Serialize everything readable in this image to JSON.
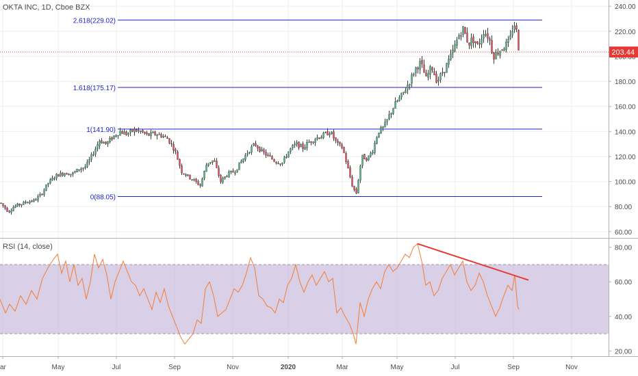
{
  "header": {
    "symbol_label": "OKTA INC, 1D, Cboe BZX"
  },
  "rsi_panel": {
    "label": "RSI (14, close)"
  },
  "colors": {
    "up": "#53b987",
    "down": "#eb4d5c",
    "fib": "#1e22cc",
    "rsi_line": "#f57c34",
    "rsi_band": "#b9a8d2",
    "trend": "#e53935",
    "price_line": "#e53935",
    "axis_text": "#4a4a4a"
  },
  "chart_data": [
    {
      "type": "candlestick",
      "title": "OKTA INC, 1D, Cboe BZX",
      "x_axis": {
        "ticks": [
          "ar",
          "May",
          "Jul",
          "Sep",
          "Nov",
          "2020",
          "Mar",
          "May",
          "Jul",
          "Sep",
          "Nov"
        ]
      },
      "y_axis": {
        "side": "right",
        "ticks": [
          "60.00",
          "80.00",
          "100.00",
          "120.00",
          "140.00",
          "160.00",
          "180.00",
          "200.00",
          "220.00",
          "240.00"
        ],
        "ylim": [
          55,
          245
        ]
      },
      "last_price": {
        "value": 203.44,
        "label": "203.44"
      },
      "fib_levels": [
        {
          "label": "2.618(229.02)",
          "value": 229.02
        },
        {
          "label": "1.618(175.17)",
          "value": 175.17
        },
        {
          "label": "1(141.90)",
          "value": 141.9
        },
        {
          "label": "0(88.05)",
          "value": 88.05
        }
      ],
      "price_path": [
        [
          0,
          83
        ],
        [
          12,
          76
        ],
        [
          20,
          80
        ],
        [
          30,
          82
        ],
        [
          40,
          84
        ],
        [
          50,
          85
        ],
        [
          60,
          90
        ],
        [
          70,
          99
        ],
        [
          82,
          105
        ],
        [
          95,
          107
        ],
        [
          105,
          106
        ],
        [
          115,
          110
        ],
        [
          125,
          112
        ],
        [
          135,
          122
        ],
        [
          145,
          133
        ],
        [
          155,
          130
        ],
        [
          165,
          136
        ],
        [
          175,
          140
        ],
        [
          185,
          138
        ],
        [
          195,
          141
        ],
        [
          205,
          140
        ],
        [
          215,
          137
        ],
        [
          225,
          138
        ],
        [
          235,
          137
        ],
        [
          245,
          134
        ],
        [
          255,
          125
        ],
        [
          265,
          108
        ],
        [
          280,
          102
        ],
        [
          292,
          97
        ],
        [
          302,
          115
        ],
        [
          312,
          117
        ],
        [
          322,
          100
        ],
        [
          332,
          106
        ],
        [
          342,
          108
        ],
        [
          352,
          116
        ],
        [
          362,
          124
        ],
        [
          372,
          130
        ],
        [
          382,
          124
        ],
        [
          392,
          120
        ],
        [
          402,
          116
        ],
        [
          412,
          115
        ],
        [
          422,
          125
        ],
        [
          432,
          130
        ],
        [
          442,
          127
        ],
        [
          452,
          132
        ],
        [
          462,
          135
        ],
        [
          472,
          137
        ],
        [
          482,
          140
        ],
        [
          492,
          130
        ],
        [
          500,
          127
        ],
        [
          508,
          110
        ],
        [
          515,
          95
        ],
        [
          520,
          91
        ],
        [
          528,
          120
        ],
        [
          536,
          118
        ],
        [
          544,
          125
        ],
        [
          552,
          140
        ],
        [
          560,
          143
        ],
        [
          570,
          155
        ],
        [
          578,
          163
        ],
        [
          588,
          170
        ],
        [
          598,
          180
        ],
        [
          606,
          190
        ],
        [
          614,
          195
        ],
        [
          622,
          182
        ],
        [
          630,
          192
        ],
        [
          638,
          180
        ],
        [
          646,
          187
        ],
        [
          654,
          195
        ],
        [
          662,
          205
        ],
        [
          670,
          217
        ],
        [
          676,
          222
        ],
        [
          684,
          210
        ],
        [
          690,
          214
        ],
        [
          698,
          208
        ],
        [
          706,
          220
        ],
        [
          714,
          215
        ],
        [
          720,
          200
        ],
        [
          728,
          204
        ],
        [
          736,
          208
        ],
        [
          744,
          212
        ],
        [
          750,
          227
        ],
        [
          754,
          220
        ],
        [
          758,
          203
        ]
      ]
    },
    {
      "type": "line",
      "title": "RSI (14, close)",
      "y_axis": {
        "side": "right",
        "ticks": [
          "20.00",
          "40.00",
          "60.00",
          "80.00"
        ],
        "ylim": [
          17,
          85
        ]
      },
      "band": [
        30,
        70
      ],
      "trendline": [
        [
          610,
          82
        ],
        [
          772,
          61
        ]
      ],
      "series": [
        {
          "values": [
            [
              0,
              50
            ],
            [
              8,
              42
            ],
            [
              14,
              47
            ],
            [
              22,
              43
            ],
            [
              30,
              52
            ],
            [
              38,
              47
            ],
            [
              46,
              55
            ],
            [
              54,
              50
            ],
            [
              62,
              62
            ],
            [
              70,
              68
            ],
            [
              78,
              73
            ],
            [
              84,
              76
            ],
            [
              90,
              65
            ],
            [
              96,
              72
            ],
            [
              102,
              60
            ],
            [
              108,
              70
            ],
            [
              114,
              58
            ],
            [
              120,
              62
            ],
            [
              126,
              50
            ],
            [
              132,
              60
            ],
            [
              138,
              76
            ],
            [
              144,
              68
            ],
            [
              150,
              73
            ],
            [
              156,
              64
            ],
            [
              162,
              50
            ],
            [
              168,
              60
            ],
            [
              174,
              66
            ],
            [
              180,
              72
            ],
            [
              186,
              66
            ],
            [
              192,
              60
            ],
            [
              198,
              58
            ],
            [
              204,
              52
            ],
            [
              210,
              56
            ],
            [
              216,
              50
            ],
            [
              222,
              44
            ],
            [
              228,
              54
            ],
            [
              234,
              48
            ],
            [
              240,
              56
            ],
            [
              246,
              46
            ],
            [
              252,
              40
            ],
            [
              258,
              34
            ],
            [
              264,
              28
            ],
            [
              270,
              24
            ],
            [
              276,
              27
            ],
            [
              282,
              30
            ],
            [
              288,
              38
            ],
            [
              294,
              36
            ],
            [
              300,
              56
            ],
            [
              306,
              60
            ],
            [
              312,
              52
            ],
            [
              318,
              40
            ],
            [
              324,
              42
            ],
            [
              330,
              44
            ],
            [
              336,
              50
            ],
            [
              342,
              56
            ],
            [
              348,
              54
            ],
            [
              354,
              58
            ],
            [
              360,
              65
            ],
            [
              366,
              74
            ],
            [
              372,
              68
            ],
            [
              378,
              52
            ],
            [
              384,
              50
            ],
            [
              390,
              46
            ],
            [
              396,
              45
            ],
            [
              402,
              42
            ],
            [
              408,
              50
            ],
            [
              414,
              48
            ],
            [
              420,
              58
            ],
            [
              426,
              62
            ],
            [
              432,
              70
            ],
            [
              438,
              60
            ],
            [
              444,
              54
            ],
            [
              450,
              60
            ],
            [
              456,
              64
            ],
            [
              462,
              58
            ],
            [
              468,
              62
            ],
            [
              474,
              66
            ],
            [
              480,
              60
            ],
            [
              486,
              62
            ],
            [
              492,
              42
            ],
            [
              498,
              45
            ],
            [
              504,
              40
            ],
            [
              510,
              36
            ],
            [
              516,
              30
            ],
            [
              520,
              24
            ],
            [
              526,
              48
            ],
            [
              532,
              40
            ],
            [
              538,
              50
            ],
            [
              544,
              56
            ],
            [
              550,
              60
            ],
            [
              556,
              56
            ],
            [
              562,
              66
            ],
            [
              568,
              70
            ],
            [
              574,
              66
            ],
            [
              580,
              68
            ],
            [
              586,
              72
            ],
            [
              592,
              76
            ],
            [
              598,
              74
            ],
            [
              604,
              80
            ],
            [
              610,
              82
            ],
            [
              616,
              72
            ],
            [
              622,
              58
            ],
            [
              628,
              60
            ],
            [
              634,
              52
            ],
            [
              640,
              55
            ],
            [
              646,
              62
            ],
            [
              652,
              66
            ],
            [
              658,
              70
            ],
            [
              664,
              64
            ],
            [
              670,
              68
            ],
            [
              676,
              72
            ],
            [
              682,
              60
            ],
            [
              688,
              55
            ],
            [
              694,
              58
            ],
            [
              700,
              65
            ],
            [
              706,
              60
            ],
            [
              712,
              52
            ],
            [
              718,
              46
            ],
            [
              724,
              40
            ],
            [
              730,
              45
            ],
            [
              736,
              52
            ],
            [
              742,
              58
            ],
            [
              748,
              55
            ],
            [
              752,
              64
            ],
            [
              756,
              46
            ],
            [
              758,
              44
            ]
          ]
        }
      ]
    }
  ]
}
